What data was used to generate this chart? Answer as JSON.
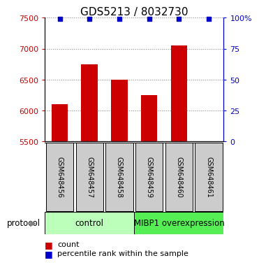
{
  "title": "GDS5213 / 8032730",
  "samples": [
    "GSM648456",
    "GSM648457",
    "GSM648458",
    "GSM648459",
    "GSM648460",
    "GSM648461"
  ],
  "counts": [
    6100,
    6750,
    6500,
    6250,
    7050,
    5500
  ],
  "percentile_ranks": [
    99,
    99,
    99,
    99,
    99,
    99
  ],
  "ylim_left": [
    5500,
    7500
  ],
  "ylim_right": [
    0,
    100
  ],
  "yticks_left": [
    5500,
    6000,
    6500,
    7000,
    7500
  ],
  "yticks_right": [
    0,
    25,
    50,
    75,
    100
  ],
  "bar_color": "#cc0000",
  "dot_color": "#0000cc",
  "protocol_labels": [
    "control",
    "MIBP1 overexpression"
  ],
  "protocol_colors": [
    "#bbffbb",
    "#55ee55"
  ],
  "sample_box_color": "#cccccc",
  "grid_color": "#888888",
  "title_fontsize": 11,
  "axis_label_color_left": "#cc0000",
  "axis_label_color_right": "#0000cc",
  "tick_fontsize": 8,
  "sample_fontsize": 7,
  "protocol_fontsize": 8.5,
  "legend_fontsize": 8
}
